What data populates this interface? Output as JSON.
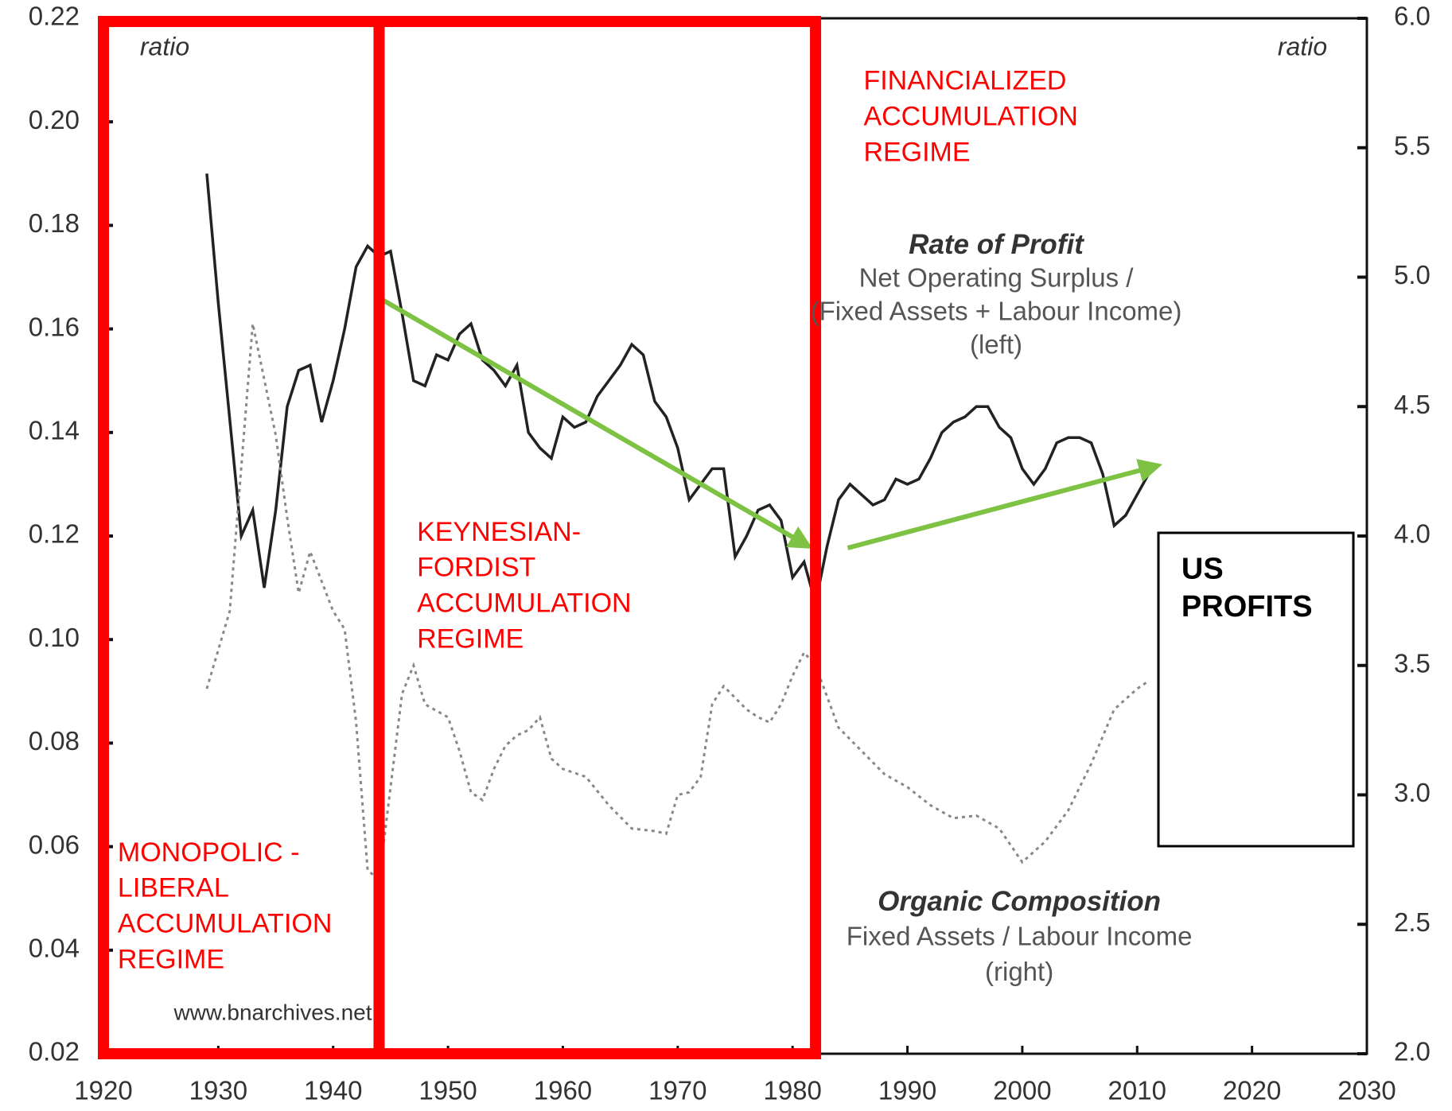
{
  "chart_data": {
    "type": "line",
    "y_label": "ratio",
    "y2_label": "ratio",
    "source": "www.bnarchives.net",
    "xlim": [
      1920,
      2030
    ],
    "xticks": [
      1920,
      1930,
      1940,
      1950,
      1960,
      1970,
      1980,
      1990,
      2000,
      2010,
      2020,
      2030
    ],
    "ylim": [
      0.02,
      0.22
    ],
    "yticks": [
      0.02,
      0.04,
      0.06,
      0.08,
      {
        "value": 0.1,
        "label": "0.10"
      },
      0.12,
      0.14,
      0.16,
      0.18,
      {
        "value": 0.2,
        "label": "0.20"
      },
      0.22
    ],
    "y2lim": [
      2,
      6
    ],
    "y2ticks": [
      {
        "value": 2,
        "label": "2.0"
      },
      2.5,
      {
        "value": 3,
        "label": "3.0"
      },
      3.5,
      {
        "value": 4,
        "label": "4.0"
      },
      4.5,
      {
        "value": 5,
        "label": "5.0"
      },
      5.5,
      {
        "value": 6,
        "label": "6.0"
      }
    ],
    "series": [
      {
        "name": "Rate of Profit",
        "lines": [
          "Net Operating Surplus /",
          "(Fixed Assets + Labour Income)",
          "(left)"
        ],
        "color": "#222222",
        "line_style": "solid",
        "axis": "y",
        "x": [
          1929,
          1930,
          1932,
          1933,
          1934,
          1935,
          1936,
          1937,
          1938,
          1939,
          1940,
          1941,
          1942,
          1943,
          1944,
          1945,
          1946,
          1947,
          1948,
          1949,
          1950,
          1951,
          1952,
          1953,
          1954,
          1955,
          1956,
          1957,
          1958,
          1959,
          1960,
          1961,
          1962,
          1963,
          1964,
          1965,
          1966,
          1967,
          1968,
          1969,
          1970,
          1971,
          1972,
          1973,
          1974,
          1975,
          1976,
          1977,
          1978,
          1979,
          1980,
          1981,
          1982,
          1983,
          1984,
          1985,
          1986,
          1987,
          1988,
          1989,
          1990,
          1991,
          1992,
          1993,
          1994,
          1995,
          1996,
          1997,
          1998,
          1999,
          2000,
          2001,
          2002,
          2003,
          2004,
          2005,
          2006,
          2007,
          2008,
          2009,
          2010,
          2011
        ],
        "values": [
          0.19,
          0.165,
          0.12,
          0.125,
          0.11,
          0.125,
          0.145,
          0.152,
          0.153,
          0.142,
          0.15,
          0.16,
          0.172,
          0.176,
          0.174,
          0.175,
          0.163,
          0.15,
          0.149,
          0.155,
          0.154,
          0.159,
          0.161,
          0.154,
          0.152,
          0.149,
          0.153,
          0.14,
          0.137,
          0.135,
          0.143,
          0.141,
          0.142,
          0.147,
          0.15,
          0.153,
          0.157,
          0.155,
          0.146,
          0.143,
          0.137,
          0.127,
          0.13,
          0.133,
          0.133,
          0.116,
          0.12,
          0.125,
          0.126,
          0.123,
          0.112,
          0.115,
          0.107,
          0.118,
          0.127,
          0.13,
          0.128,
          0.126,
          0.127,
          0.131,
          0.13,
          0.131,
          0.135,
          0.14,
          0.142,
          0.143,
          0.145,
          0.145,
          0.141,
          0.139,
          0.133,
          0.13,
          0.133,
          0.138,
          0.139,
          0.139,
          0.138,
          0.132,
          0.122,
          0.124,
          0.128,
          0.132
        ]
      },
      {
        "name": "Organic Composition",
        "lines": [
          "Fixed Assets / Labour Income",
          "(right)"
        ],
        "color": "#888888",
        "line_style": "dotted",
        "axis": "y2",
        "x": [
          1929,
          1931,
          1933,
          1935,
          1936,
          1937,
          1938,
          1940,
          1941,
          1942,
          1943,
          1944,
          1945,
          1946,
          1947,
          1948,
          1950,
          1951,
          1952,
          1953,
          1954,
          1955,
          1956,
          1957,
          1958,
          1959,
          1960,
          1962,
          1964,
          1966,
          1968,
          1969,
          1970,
          1971,
          1972,
          1973,
          1974,
          1976,
          1977,
          1978,
          1979,
          1980,
          1981,
          1982,
          1984,
          1986,
          1988,
          1990,
          1992,
          1994,
          1996,
          1998,
          2000,
          2002,
          2004,
          2006,
          2008,
          2010,
          2011
        ],
        "values": [
          3.41,
          3.71,
          4.82,
          4.39,
          4.07,
          3.78,
          3.94,
          3.71,
          3.64,
          3.28,
          2.71,
          2.67,
          3.03,
          3.39,
          3.5,
          3.35,
          3.3,
          3.17,
          3.01,
          2.98,
          3.1,
          3.19,
          3.23,
          3.25,
          3.3,
          3.14,
          3.1,
          3.07,
          2.96,
          2.87,
          2.86,
          2.85,
          3.0,
          3.01,
          3.07,
          3.35,
          3.42,
          3.33,
          3.3,
          3.28,
          3.35,
          3.46,
          3.55,
          3.5,
          3.26,
          3.17,
          3.08,
          3.03,
          2.96,
          2.91,
          2.92,
          2.87,
          2.74,
          2.82,
          2.94,
          3.12,
          3.33,
          3.41,
          3.44
        ]
      }
    ],
    "trends": [
      {
        "color": "#7dc242",
        "x": [
          1944,
          1981.4
        ],
        "values": [
          0.166,
          0.118
        ]
      },
      {
        "color": "#7dc242",
        "x": [
          1984.8,
          2011.8
        ],
        "values": [
          0.1177,
          0.1336
        ]
      }
    ],
    "regimes": [
      {
        "lines": [
          "MONOPOLIC -",
          "LIBERAL",
          "ACCUMULATION",
          "REGIME"
        ],
        "start": 1920,
        "end": 1944,
        "color": "#ff0000"
      },
      {
        "lines": [
          "KEYNESIAN-",
          "FORDIST",
          "ACCUMULATION",
          "REGIME"
        ],
        "start": 1944,
        "end": 1982,
        "color": "#ff0000"
      },
      {
        "lines": [
          "FINANCIALIZED",
          "ACCUMULATION",
          "REGIME"
        ],
        "color": "#ff0000"
      }
    ],
    "box_label": [
      "US",
      "PROFITS"
    ]
  }
}
